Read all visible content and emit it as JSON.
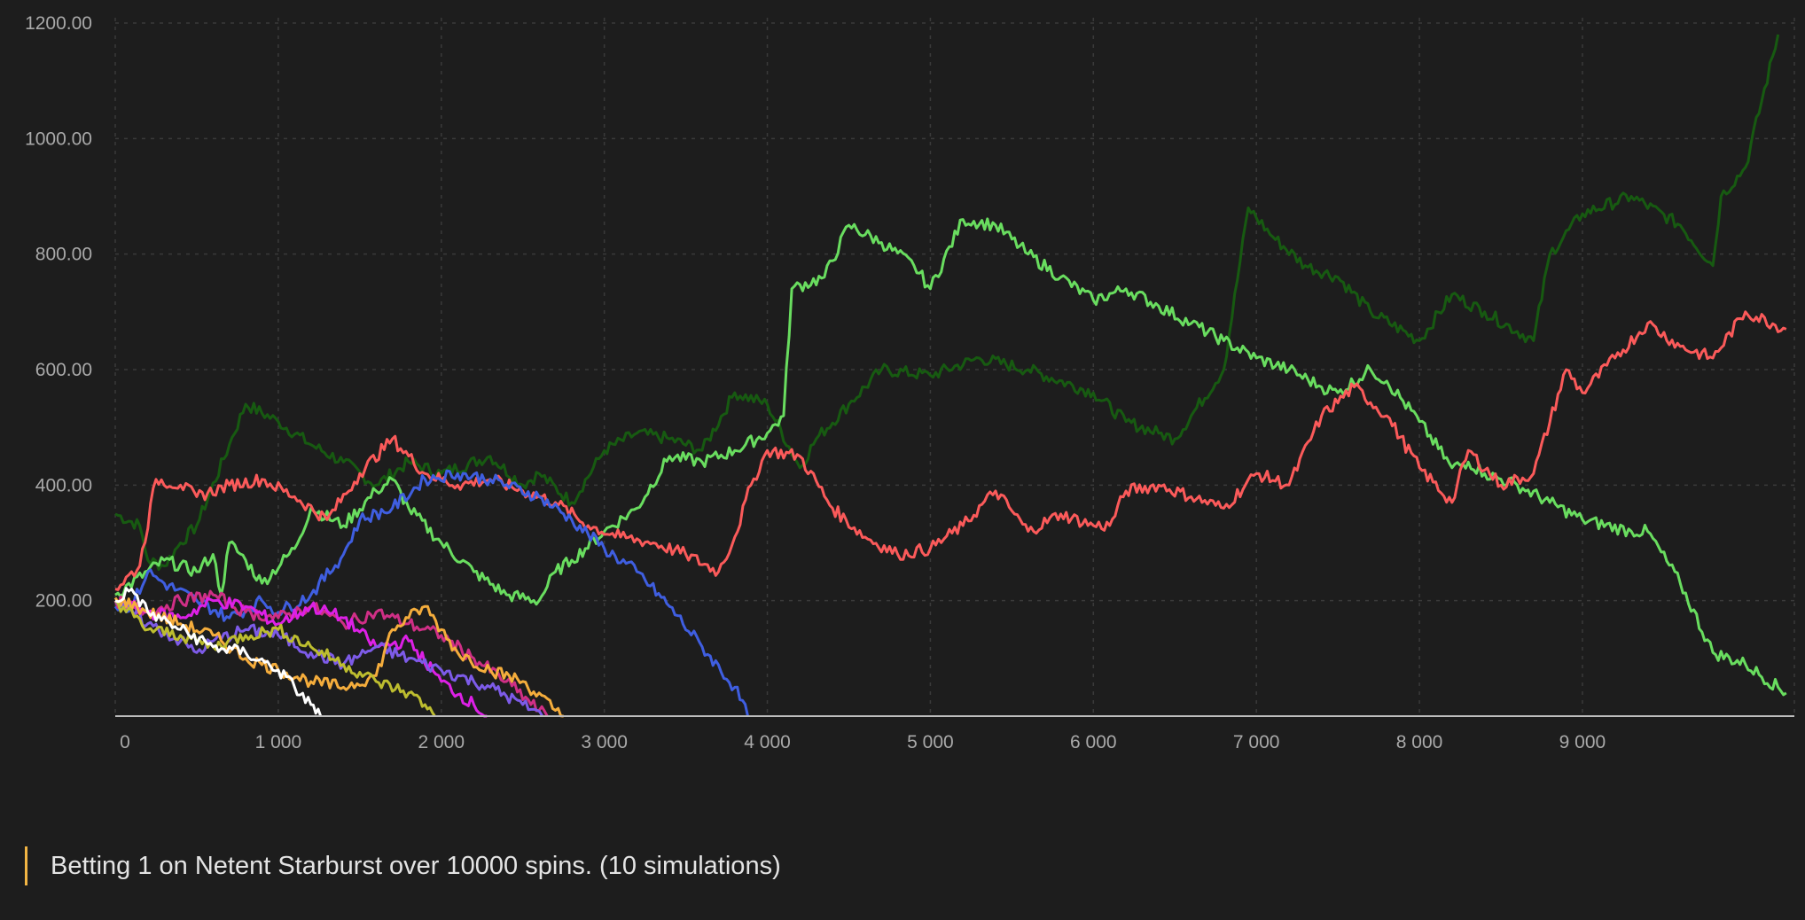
{
  "chart_data": {
    "type": "line",
    "title": "",
    "xlabel": "",
    "ylabel": "",
    "xlim": [
      0,
      10300
    ],
    "ylim": [
      0,
      1200
    ],
    "y_ticks": [
      "1200.00",
      "1000.00",
      "800.00",
      "600.00",
      "400.00",
      "200.00"
    ],
    "y_tick_values": [
      1200,
      1000,
      800,
      600,
      400,
      200
    ],
    "x_ticks": [
      "0",
      "1 000",
      "2 000",
      "3 000",
      "4 000",
      "5 000",
      "6 000",
      "7 000",
      "8 000",
      "9 000"
    ],
    "x_tick_values": [
      0,
      1000,
      2000,
      3000,
      4000,
      5000,
      6000,
      7000,
      8000,
      9000
    ],
    "grid": true,
    "legend": "none",
    "series": [
      {
        "color": "#175a11",
        "points": [
          [
            0,
            350
          ],
          [
            150,
            330
          ],
          [
            200,
            270
          ],
          [
            300,
            260
          ],
          [
            400,
            300
          ],
          [
            500,
            330
          ],
          [
            700,
            470
          ],
          [
            800,
            540
          ],
          [
            1000,
            510
          ],
          [
            1200,
            470
          ],
          [
            1400,
            440
          ],
          [
            1600,
            400
          ],
          [
            1800,
            440
          ],
          [
            2000,
            420
          ],
          [
            2300,
            450
          ],
          [
            2500,
            400
          ],
          [
            2600,
            420
          ],
          [
            2800,
            370
          ],
          [
            3000,
            460
          ],
          [
            3200,
            490
          ],
          [
            3400,
            480
          ],
          [
            3600,
            460
          ],
          [
            3800,
            560
          ],
          [
            4000,
            540
          ],
          [
            4200,
            430
          ],
          [
            4300,
            480
          ],
          [
            4500,
            540
          ],
          [
            4700,
            600
          ],
          [
            5000,
            590
          ],
          [
            5300,
            620
          ],
          [
            5600,
            600
          ],
          [
            6000,
            560
          ],
          [
            6200,
            510
          ],
          [
            6400,
            490
          ],
          [
            6500,
            480
          ],
          [
            6800,
            600
          ],
          [
            6950,
            880
          ],
          [
            7100,
            830
          ],
          [
            7300,
            780
          ],
          [
            7500,
            760
          ],
          [
            7700,
            700
          ],
          [
            8000,
            650
          ],
          [
            8200,
            730
          ],
          [
            8400,
            700
          ],
          [
            8700,
            650
          ],
          [
            8800,
            800
          ],
          [
            9000,
            870
          ],
          [
            9300,
            900
          ],
          [
            9600,
            850
          ],
          [
            9800,
            780
          ],
          [
            9850,
            900
          ],
          [
            10000,
            950
          ],
          [
            10200,
            1180
          ]
        ]
      },
      {
        "color": "#69dd5f",
        "points": [
          [
            0,
            210
          ],
          [
            300,
            270
          ],
          [
            500,
            250
          ],
          [
            600,
            280
          ],
          [
            650,
            210
          ],
          [
            700,
            300
          ],
          [
            800,
            270
          ],
          [
            900,
            230
          ],
          [
            1100,
            290
          ],
          [
            1200,
            360
          ],
          [
            1400,
            330
          ],
          [
            1600,
            390
          ],
          [
            1700,
            410
          ],
          [
            1800,
            360
          ],
          [
            2000,
            300
          ],
          [
            2200,
            250
          ],
          [
            2400,
            210
          ],
          [
            2600,
            200
          ],
          [
            2700,
            250
          ],
          [
            2800,
            270
          ],
          [
            3000,
            320
          ],
          [
            3200,
            360
          ],
          [
            3400,
            450
          ],
          [
            3600,
            440
          ],
          [
            3800,
            460
          ],
          [
            4000,
            490
          ],
          [
            4100,
            520
          ],
          [
            4150,
            740
          ],
          [
            4350,
            760
          ],
          [
            4500,
            850
          ],
          [
            4700,
            820
          ],
          [
            4900,
            780
          ],
          [
            5000,
            740
          ],
          [
            5200,
            860
          ],
          [
            5400,
            850
          ],
          [
            5600,
            800
          ],
          [
            5800,
            760
          ],
          [
            6000,
            720
          ],
          [
            6200,
            740
          ],
          [
            6400,
            710
          ],
          [
            6600,
            680
          ],
          [
            6800,
            650
          ],
          [
            7000,
            620
          ],
          [
            7200,
            600
          ],
          [
            7400,
            570
          ],
          [
            7500,
            560
          ],
          [
            7700,
            600
          ],
          [
            7800,
            580
          ],
          [
            8000,
            510
          ],
          [
            8200,
            430
          ],
          [
            8300,
            440
          ],
          [
            8400,
            420
          ],
          [
            8600,
            400
          ],
          [
            8800,
            370
          ],
          [
            9000,
            340
          ],
          [
            9300,
            320
          ],
          [
            9400,
            320
          ],
          [
            9600,
            230
          ],
          [
            9800,
            110
          ],
          [
            10000,
            90
          ],
          [
            10250,
            40
          ]
        ]
      },
      {
        "color": "#fb5a5a",
        "points": [
          [
            0,
            220
          ],
          [
            150,
            260
          ],
          [
            250,
            410
          ],
          [
            400,
            400
          ],
          [
            500,
            380
          ],
          [
            700,
            400
          ],
          [
            900,
            410
          ],
          [
            1100,
            380
          ],
          [
            1300,
            340
          ],
          [
            1500,
            420
          ],
          [
            1700,
            480
          ],
          [
            1900,
            420
          ],
          [
            2100,
            400
          ],
          [
            2300,
            410
          ],
          [
            2500,
            390
          ],
          [
            2700,
            370
          ],
          [
            2900,
            330
          ],
          [
            3100,
            310
          ],
          [
            3300,
            300
          ],
          [
            3500,
            280
          ],
          [
            3700,
            250
          ],
          [
            3800,
            310
          ],
          [
            3900,
            400
          ],
          [
            4000,
            460
          ],
          [
            4200,
            450
          ],
          [
            4400,
            360
          ],
          [
            4600,
            310
          ],
          [
            4800,
            280
          ],
          [
            5000,
            290
          ],
          [
            5200,
            330
          ],
          [
            5400,
            390
          ],
          [
            5600,
            320
          ],
          [
            5800,
            350
          ],
          [
            6000,
            330
          ],
          [
            6100,
            330
          ],
          [
            6200,
            390
          ],
          [
            6400,
            400
          ],
          [
            6600,
            380
          ],
          [
            6800,
            360
          ],
          [
            7000,
            420
          ],
          [
            7200,
            400
          ],
          [
            7400,
            520
          ],
          [
            7600,
            570
          ],
          [
            7800,
            520
          ],
          [
            8000,
            430
          ],
          [
            8200,
            370
          ],
          [
            8300,
            460
          ],
          [
            8500,
            400
          ],
          [
            8700,
            420
          ],
          [
            8900,
            600
          ],
          [
            9000,
            560
          ],
          [
            9200,
            620
          ],
          [
            9400,
            680
          ],
          [
            9600,
            640
          ],
          [
            9800,
            620
          ],
          [
            10000,
            700
          ],
          [
            10250,
            670
          ]
        ]
      },
      {
        "color": "#3f5ee0",
        "points": [
          [
            0,
            190
          ],
          [
            100,
            190
          ],
          [
            200,
            250
          ],
          [
            300,
            230
          ],
          [
            500,
            200
          ],
          [
            700,
            170
          ],
          [
            900,
            200
          ],
          [
            1000,
            180
          ],
          [
            1200,
            210
          ],
          [
            1400,
            280
          ],
          [
            1500,
            340
          ],
          [
            1700,
            360
          ],
          [
            1900,
            410
          ],
          [
            2100,
            420
          ],
          [
            2300,
            410
          ],
          [
            2600,
            380
          ],
          [
            2800,
            340
          ],
          [
            3000,
            290
          ],
          [
            3200,
            250
          ],
          [
            3400,
            190
          ],
          [
            3600,
            120
          ],
          [
            3800,
            50
          ],
          [
            3880,
            0
          ]
        ]
      },
      {
        "color": "#cf2f86",
        "points": [
          [
            0,
            200
          ],
          [
            200,
            180
          ],
          [
            400,
            200
          ],
          [
            600,
            210
          ],
          [
            800,
            180
          ],
          [
            1000,
            170
          ],
          [
            1200,
            190
          ],
          [
            1400,
            160
          ],
          [
            1600,
            180
          ],
          [
            1800,
            160
          ],
          [
            2000,
            140
          ],
          [
            2200,
            100
          ],
          [
            2400,
            60
          ],
          [
            2600,
            10
          ],
          [
            2650,
            0
          ]
        ]
      },
      {
        "color": "#dd20e6",
        "points": [
          [
            0,
            200
          ],
          [
            200,
            180
          ],
          [
            400,
            170
          ],
          [
            600,
            200
          ],
          [
            800,
            190
          ],
          [
            1000,
            160
          ],
          [
            1200,
            190
          ],
          [
            1400,
            170
          ],
          [
            1600,
            120
          ],
          [
            1800,
            130
          ],
          [
            2000,
            60
          ],
          [
            2200,
            20
          ],
          [
            2280,
            0
          ]
        ]
      },
      {
        "color": "#7d5be8",
        "points": [
          [
            0,
            200
          ],
          [
            200,
            160
          ],
          [
            400,
            130
          ],
          [
            500,
            110
          ],
          [
            600,
            130
          ],
          [
            800,
            150
          ],
          [
            1000,
            140
          ],
          [
            1200,
            110
          ],
          [
            1400,
            90
          ],
          [
            1600,
            120
          ],
          [
            1800,
            100
          ],
          [
            2000,
            80
          ],
          [
            2300,
            50
          ],
          [
            2500,
            20
          ],
          [
            2620,
            0
          ]
        ]
      },
      {
        "color": "#f5ad3c",
        "points": [
          [
            0,
            205
          ],
          [
            200,
            180
          ],
          [
            400,
            160
          ],
          [
            600,
            140
          ],
          [
            800,
            100
          ],
          [
            1000,
            80
          ],
          [
            1200,
            60
          ],
          [
            1400,
            50
          ],
          [
            1600,
            70
          ],
          [
            1700,
            150
          ],
          [
            1800,
            170
          ],
          [
            1900,
            190
          ],
          [
            2000,
            150
          ],
          [
            2100,
            110
          ],
          [
            2300,
            80
          ],
          [
            2500,
            60
          ],
          [
            2700,
            10
          ],
          [
            2750,
            0
          ]
        ]
      },
      {
        "color": "#bdbd2f",
        "points": [
          [
            0,
            200
          ],
          [
            200,
            150
          ],
          [
            400,
            140
          ],
          [
            600,
            120
          ],
          [
            800,
            140
          ],
          [
            1000,
            150
          ],
          [
            1200,
            120
          ],
          [
            1400,
            90
          ],
          [
            1600,
            60
          ],
          [
            1800,
            40
          ],
          [
            1900,
            20
          ],
          [
            1960,
            0
          ]
        ]
      },
      {
        "color": "#ffffff",
        "points": [
          [
            0,
            200
          ],
          [
            100,
            220
          ],
          [
            200,
            180
          ],
          [
            400,
            150
          ],
          [
            600,
            120
          ],
          [
            800,
            110
          ],
          [
            1000,
            80
          ],
          [
            1100,
            50
          ],
          [
            1200,
            20
          ],
          [
            1260,
            0
          ]
        ]
      }
    ]
  },
  "caption": "Betting 1 on Netent Starburst over 10000 spins. (10 simulations)",
  "colors": {
    "background": "#1d1d1d",
    "accent": "#f2b544"
  }
}
